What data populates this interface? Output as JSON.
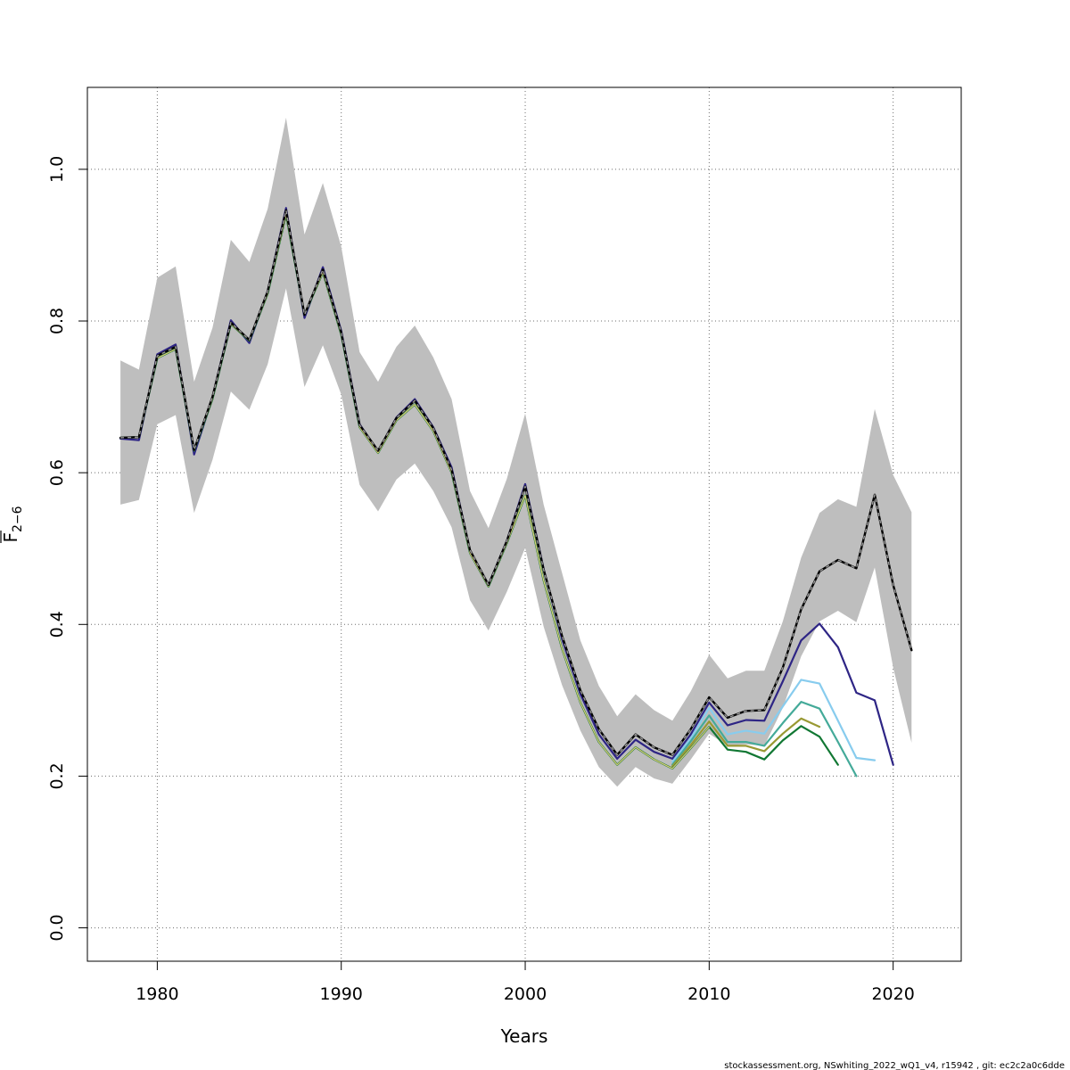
{
  "chart_data": {
    "type": "line",
    "title": "",
    "xlabel": "Years",
    "ylabel_main": "F",
    "ylabel_sub": "2−6",
    "xlim": [
      1976.2,
      2023.7
    ],
    "ylim": [
      -0.044,
      1.108
    ],
    "x_ticks": [
      1980,
      1990,
      2000,
      2010,
      2020
    ],
    "x_tick_labels": [
      "1980",
      "1990",
      "2000",
      "2010",
      "2020"
    ],
    "y_ticks": [
      0.0,
      0.2,
      0.4,
      0.6,
      0.8,
      1.0
    ],
    "y_tick_labels": [
      "0.0",
      "0.2",
      "0.4",
      "0.6",
      "0.8",
      "1.0"
    ],
    "grid": true,
    "confidence_band": {
      "color": "#bebebe",
      "x": [
        1978,
        1979,
        1980,
        1981,
        1982,
        1983,
        1984,
        1985,
        1986,
        1987,
        1988,
        1989,
        1990,
        1991,
        1992,
        1993,
        1994,
        1995,
        1996,
        1997,
        1998,
        1999,
        2000,
        2001,
        2002,
        2003,
        2004,
        2005,
        2006,
        2007,
        2008,
        2009,
        2010,
        2011,
        2012,
        2013,
        2014,
        2015,
        2016,
        2017,
        2018,
        2019,
        2020,
        2021
      ],
      "lower": [
        0.558,
        0.564,
        0.664,
        0.676,
        0.547,
        0.617,
        0.707,
        0.683,
        0.743,
        0.843,
        0.713,
        0.768,
        0.703,
        0.584,
        0.549,
        0.591,
        0.612,
        0.576,
        0.528,
        0.432,
        0.392,
        0.443,
        0.501,
        0.397,
        0.32,
        0.26,
        0.212,
        0.186,
        0.212,
        0.197,
        0.19,
        0.222,
        0.256,
        0.24,
        0.242,
        0.24,
        0.29,
        0.358,
        0.404,
        0.418,
        0.403,
        0.475,
        0.343,
        0.244
      ],
      "upper": [
        0.748,
        0.736,
        0.857,
        0.872,
        0.72,
        0.791,
        0.907,
        0.878,
        0.948,
        1.068,
        0.914,
        0.982,
        0.898,
        0.759,
        0.72,
        0.766,
        0.794,
        0.752,
        0.697,
        0.576,
        0.527,
        0.592,
        0.678,
        0.558,
        0.468,
        0.379,
        0.319,
        0.279,
        0.308,
        0.287,
        0.273,
        0.312,
        0.36,
        0.329,
        0.339,
        0.339,
        0.404,
        0.488,
        0.547,
        0.565,
        0.555,
        0.684,
        0.597,
        0.548
      ]
    },
    "series": [
      {
        "color": "#2e2585",
        "dashed": false,
        "width": 2.2,
        "x": [
          1978,
          1979,
          1980,
          1981,
          1982,
          1983,
          1984,
          1985,
          1986,
          1987,
          1988,
          1989,
          1990,
          1991,
          1992,
          1993,
          1994,
          1995,
          1996,
          1997,
          1998,
          1999,
          2000,
          2001,
          2002,
          2003,
          2004,
          2005,
          2006,
          2007,
          2008,
          2009,
          2010,
          2011,
          2012,
          2013,
          2014,
          2015,
          2016,
          2017,
          2018,
          2019,
          2020
        ],
        "y": [
          0.645,
          0.643,
          0.756,
          0.769,
          0.624,
          0.699,
          0.801,
          0.771,
          0.839,
          0.949,
          0.804,
          0.871,
          0.787,
          0.664,
          0.628,
          0.673,
          0.697,
          0.66,
          0.607,
          0.497,
          0.452,
          0.51,
          0.585,
          0.473,
          0.381,
          0.308,
          0.255,
          0.223,
          0.248,
          0.232,
          0.223,
          0.255,
          0.297,
          0.267,
          0.274,
          0.273,
          0.325,
          0.379,
          0.401,
          0.37,
          0.31,
          0.3,
          0.215
        ]
      },
      {
        "color": "#88ccee",
        "dashed": false,
        "width": 2.2,
        "x": [
          2008,
          2009,
          2010,
          2011,
          2012,
          2013,
          2014,
          2015,
          2016,
          2017,
          2018,
          2019
        ],
        "y": [
          0.219,
          0.25,
          0.29,
          0.255,
          0.26,
          0.256,
          0.292,
          0.327,
          0.322,
          0.273,
          0.224,
          0.221
        ]
      },
      {
        "color": "#44aa99",
        "dashed": false,
        "width": 2.2,
        "x": [
          2008,
          2009,
          2010,
          2011,
          2012,
          2013,
          2014,
          2015,
          2016,
          2017,
          2018
        ],
        "y": [
          0.215,
          0.246,
          0.28,
          0.245,
          0.245,
          0.24,
          0.27,
          0.298,
          0.289,
          0.245,
          0.2
        ]
      },
      {
        "color": "#999933",
        "dashed": false,
        "width": 2.2,
        "x": [
          2008,
          2009,
          2010,
          2011,
          2012,
          2013,
          2014,
          2015,
          2016
        ],
        "y": [
          0.213,
          0.241,
          0.272,
          0.24,
          0.24,
          0.233,
          0.256,
          0.276,
          0.265
        ]
      },
      {
        "color": "#117733",
        "dashed": false,
        "width": 2.2,
        "x": [
          1978,
          1979,
          1980,
          1981,
          1982,
          1983,
          1984,
          1985,
          1986,
          1987,
          1988,
          1989,
          1990,
          1991,
          1992,
          1993,
          1994,
          1995,
          1996,
          1997,
          1998,
          1999,
          2000,
          2001,
          2002,
          2003,
          2004,
          2005,
          2006,
          2007,
          2008,
          2009,
          2010,
          2011,
          2012,
          2013,
          2014,
          2015,
          2016,
          2017
        ],
        "y": [
          0.646,
          0.647,
          0.751,
          0.763,
          0.629,
          0.697,
          0.796,
          0.774,
          0.836,
          0.94,
          0.808,
          0.864,
          0.782,
          0.66,
          0.626,
          0.669,
          0.69,
          0.655,
          0.6,
          0.494,
          0.45,
          0.507,
          0.57,
          0.458,
          0.368,
          0.297,
          0.245,
          0.215,
          0.238,
          0.222,
          0.21,
          0.237,
          0.265,
          0.235,
          0.232,
          0.222,
          0.247,
          0.266,
          0.252,
          0.215
        ]
      },
      {
        "color": "#ddcc77",
        "dashed": false,
        "width": 1.2,
        "x": [
          1978,
          1979,
          1980,
          1981,
          1982,
          1983,
          1984,
          1985,
          1986,
          1987,
          1988,
          1989,
          1990,
          1991,
          1992,
          1993,
          1994,
          1995,
          1996,
          1997,
          1998,
          1999,
          2000,
          2001,
          2002,
          2003,
          2004,
          2005,
          2006,
          2007,
          2008,
          2009,
          2010
        ],
        "y": [
          0.646,
          0.647,
          0.751,
          0.763,
          0.629,
          0.697,
          0.796,
          0.774,
          0.836,
          0.94,
          0.808,
          0.864,
          0.782,
          0.66,
          0.626,
          0.669,
          0.69,
          0.655,
          0.6,
          0.494,
          0.45,
          0.507,
          0.57,
          0.458,
          0.368,
          0.297,
          0.245,
          0.215,
          0.238,
          0.222,
          0.21,
          0.237,
          0.265
        ]
      },
      {
        "color": "#000000",
        "dashed": false,
        "width": 2.4,
        "x": [
          1978,
          1979,
          1980,
          1981,
          1982,
          1983,
          1984,
          1985,
          1986,
          1987,
          1988,
          1989,
          1990,
          1991,
          1992,
          1993,
          1994,
          1995,
          1996,
          1997,
          1998,
          1999,
          2000,
          2001,
          2002,
          2003,
          2004,
          2005,
          2006,
          2007,
          2008,
          2009,
          2010,
          2011,
          2012,
          2013,
          2014,
          2015,
          2016,
          2017,
          2018,
          2019,
          2020,
          2021
        ],
        "y": [
          0.646,
          0.647,
          0.754,
          0.766,
          0.63,
          0.7,
          0.798,
          0.775,
          0.839,
          0.946,
          0.808,
          0.868,
          0.785,
          0.663,
          0.629,
          0.672,
          0.695,
          0.659,
          0.604,
          0.498,
          0.452,
          0.51,
          0.582,
          0.472,
          0.385,
          0.313,
          0.262,
          0.228,
          0.255,
          0.238,
          0.228,
          0.262,
          0.304,
          0.277,
          0.286,
          0.287,
          0.343,
          0.42,
          0.47,
          0.485,
          0.474,
          0.571,
          0.452,
          0.366
        ]
      },
      {
        "color": "#999999",
        "dashed": true,
        "width": 1.4,
        "x": [
          1978,
          1979,
          1980,
          1981,
          1982,
          1983,
          1984,
          1985,
          1986,
          1987,
          1988,
          1989,
          1990,
          1991,
          1992,
          1993,
          1994,
          1995,
          1996,
          1997,
          1998,
          1999,
          2000,
          2001,
          2002,
          2003,
          2004,
          2005,
          2006,
          2007,
          2008,
          2009,
          2010,
          2011,
          2012,
          2013,
          2014,
          2015,
          2016,
          2017,
          2018,
          2019,
          2020,
          2021
        ],
        "y": [
          0.646,
          0.647,
          0.754,
          0.766,
          0.63,
          0.7,
          0.798,
          0.775,
          0.839,
          0.946,
          0.808,
          0.868,
          0.785,
          0.663,
          0.629,
          0.672,
          0.695,
          0.659,
          0.604,
          0.498,
          0.452,
          0.51,
          0.582,
          0.472,
          0.385,
          0.313,
          0.262,
          0.228,
          0.255,
          0.238,
          0.228,
          0.262,
          0.304,
          0.277,
          0.286,
          0.287,
          0.343,
          0.42,
          0.47,
          0.485,
          0.474,
          0.571,
          0.452,
          0.366
        ]
      }
    ]
  },
  "footer": "stockassessment.org, NSwhiting_2022_wQ1_v4, r15942 , git: ec2c2a0c6dde"
}
